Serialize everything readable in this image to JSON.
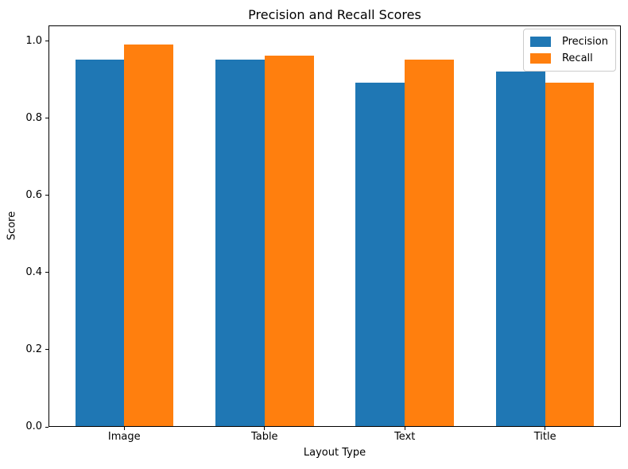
{
  "chart_data": {
    "type": "bar",
    "title": "Precision and Recall Scores",
    "xlabel": "Layout Type",
    "ylabel": "Score",
    "categories": [
      "Image",
      "Table",
      "Text",
      "Title"
    ],
    "series": [
      {
        "name": "Precision",
        "color": "#1f77b4",
        "values": [
          0.95,
          0.95,
          0.89,
          0.92
        ]
      },
      {
        "name": "Recall",
        "color": "#ff7f0e",
        "values": [
          0.99,
          0.96,
          0.95,
          0.89
        ]
      }
    ],
    "ytick_labels": [
      "0.0",
      "0.2",
      "0.4",
      "0.6",
      "0.8",
      "1.0"
    ],
    "ylim": [
      0,
      1.0412
    ],
    "xlim": [
      -0.54,
      3.54
    ],
    "bar_width": 0.35,
    "grid": false,
    "legend_position": "upper right",
    "spine_color": "#000000",
    "legend_border_color": "#cccccc"
  }
}
